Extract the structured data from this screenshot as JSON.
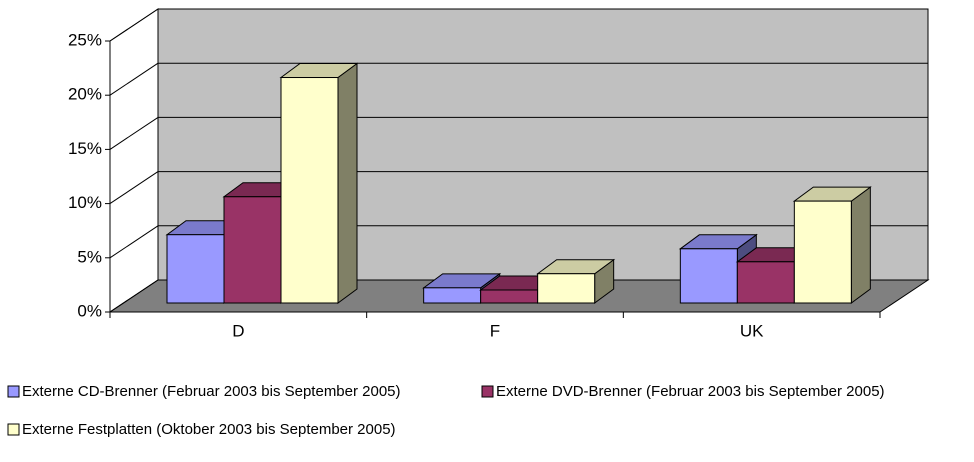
{
  "chart_data": {
    "type": "bar3d",
    "categories": [
      "D",
      "F",
      "UK"
    ],
    "series": [
      {
        "name": "Externe CD-Brenner (Februar 2003 bis September 2005)",
        "color": "#9999ff",
        "values": [
          6.3,
          1.4,
          5.0
        ]
      },
      {
        "name": "Externe DVD-Brenner (Februar 2003 bis September 2005)",
        "color": "#993366",
        "values": [
          9.8,
          1.2,
          3.8
        ]
      },
      {
        "name": "Externe Festplatten (Oktober 2003 bis September 2005)",
        "color": "#ffffcc",
        "values": [
          20.8,
          2.7,
          9.4
        ]
      }
    ],
    "ylim": [
      0,
      25
    ],
    "yticks": [
      {
        "value": 0,
        "label": "0%"
      },
      {
        "value": 5,
        "label": "5%"
      },
      {
        "value": 10,
        "label": "10%"
      },
      {
        "value": 15,
        "label": "15%"
      },
      {
        "value": 20,
        "label": "20%"
      },
      {
        "value": 25,
        "label": "25%"
      }
    ],
    "grid": true
  }
}
